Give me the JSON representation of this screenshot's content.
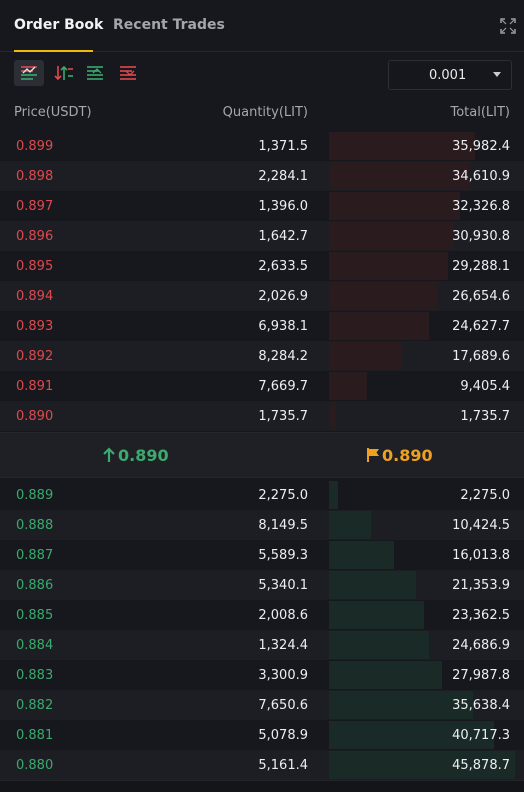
{
  "tabs": [
    {
      "label": "Order Book",
      "active": true
    },
    {
      "label": "Recent Trades",
      "active": false
    }
  ],
  "toolbar": {
    "views": [
      "both-sides",
      "buy-sell",
      "bids-only",
      "asks-only"
    ],
    "precision_value": "0.001"
  },
  "columns": {
    "price": "Price(USDT)",
    "quantity": "Quantity(LIT)",
    "total": "Total(LIT)"
  },
  "colors": {
    "ask": "#e0484d",
    "bid": "#3aaa6d",
    "mark": "#f0a020",
    "accent": "#f0b90b"
  },
  "max_total": 45878.7,
  "asks": [
    {
      "price": "0.899",
      "quantity": "1,371.5",
      "total": "35,982.4",
      "total_num": 35982.4
    },
    {
      "price": "0.898",
      "quantity": "2,284.1",
      "total": "34,610.9",
      "total_num": 34610.9
    },
    {
      "price": "0.897",
      "quantity": "1,396.0",
      "total": "32,326.8",
      "total_num": 32326.8
    },
    {
      "price": "0.896",
      "quantity": "1,642.7",
      "total": "30,930.8",
      "total_num": 30930.8
    },
    {
      "price": "0.895",
      "quantity": "2,633.5",
      "total": "29,288.1",
      "total_num": 29288.1
    },
    {
      "price": "0.894",
      "quantity": "2,026.9",
      "total": "26,654.6",
      "total_num": 26654.6
    },
    {
      "price": "0.893",
      "quantity": "6,938.1",
      "total": "24,627.7",
      "total_num": 24627.7
    },
    {
      "price": "0.892",
      "quantity": "8,284.2",
      "total": "17,689.6",
      "total_num": 17689.6
    },
    {
      "price": "0.891",
      "quantity": "7,669.7",
      "total": "9,405.4",
      "total_num": 9405.4
    },
    {
      "price": "0.890",
      "quantity": "1,735.7",
      "total": "1,735.7",
      "total_num": 1735.7
    }
  ],
  "mid": {
    "last_price": "0.890",
    "mark_price": "0.890"
  },
  "bids": [
    {
      "price": "0.889",
      "quantity": "2,275.0",
      "total": "2,275.0",
      "total_num": 2275.0
    },
    {
      "price": "0.888",
      "quantity": "8,149.5",
      "total": "10,424.5",
      "total_num": 10424.5
    },
    {
      "price": "0.887",
      "quantity": "5,589.3",
      "total": "16,013.8",
      "total_num": 16013.8
    },
    {
      "price": "0.886",
      "quantity": "5,340.1",
      "total": "21,353.9",
      "total_num": 21353.9
    },
    {
      "price": "0.885",
      "quantity": "2,008.6",
      "total": "23,362.5",
      "total_num": 23362.5
    },
    {
      "price": "0.884",
      "quantity": "1,324.4",
      "total": "24,686.9",
      "total_num": 24686.9
    },
    {
      "price": "0.883",
      "quantity": "3,300.9",
      "total": "27,987.8",
      "total_num": 27987.8
    },
    {
      "price": "0.882",
      "quantity": "7,650.6",
      "total": "35,638.4",
      "total_num": 35638.4
    },
    {
      "price": "0.881",
      "quantity": "5,078.9",
      "total": "40,717.3",
      "total_num": 40717.3
    },
    {
      "price": "0.880",
      "quantity": "5,161.4",
      "total": "45,878.7",
      "total_num": 45878.7
    }
  ]
}
